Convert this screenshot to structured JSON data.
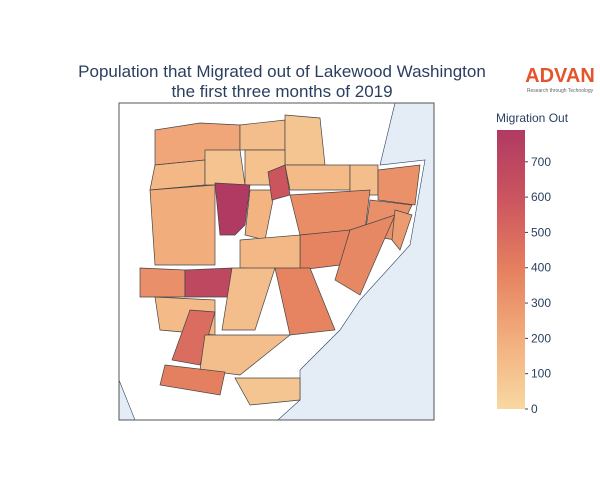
{
  "chart_data": {
    "type": "choropleth",
    "title": "Population that Migrated out of Lakewood Washington",
    "subtitle": "the first three months of 2019",
    "logo": "ADVAN",
    "logo_tagline": "Research through Technology",
    "colorbar_title": "Migration Out",
    "zlim": [
      0,
      790
    ],
    "zticks": [
      0,
      100,
      200,
      300,
      400,
      500,
      600,
      700
    ],
    "colorscale": [
      "#f8d8a2",
      "#f2ae7d",
      "#e5805f",
      "#cc555f",
      "#b03a62"
    ],
    "land_color": "#ffffff",
    "water_color": "#e4ecf6",
    "values": [
      230,
      120,
      90,
      150,
      100,
      110,
      140,
      120,
      320,
      200,
      790,
      170,
      600,
      340,
      330,
      380,
      360,
      150,
      330,
      690,
      120,
      380,
      140,
      480,
      120,
      400,
      90,
      280
    ]
  }
}
